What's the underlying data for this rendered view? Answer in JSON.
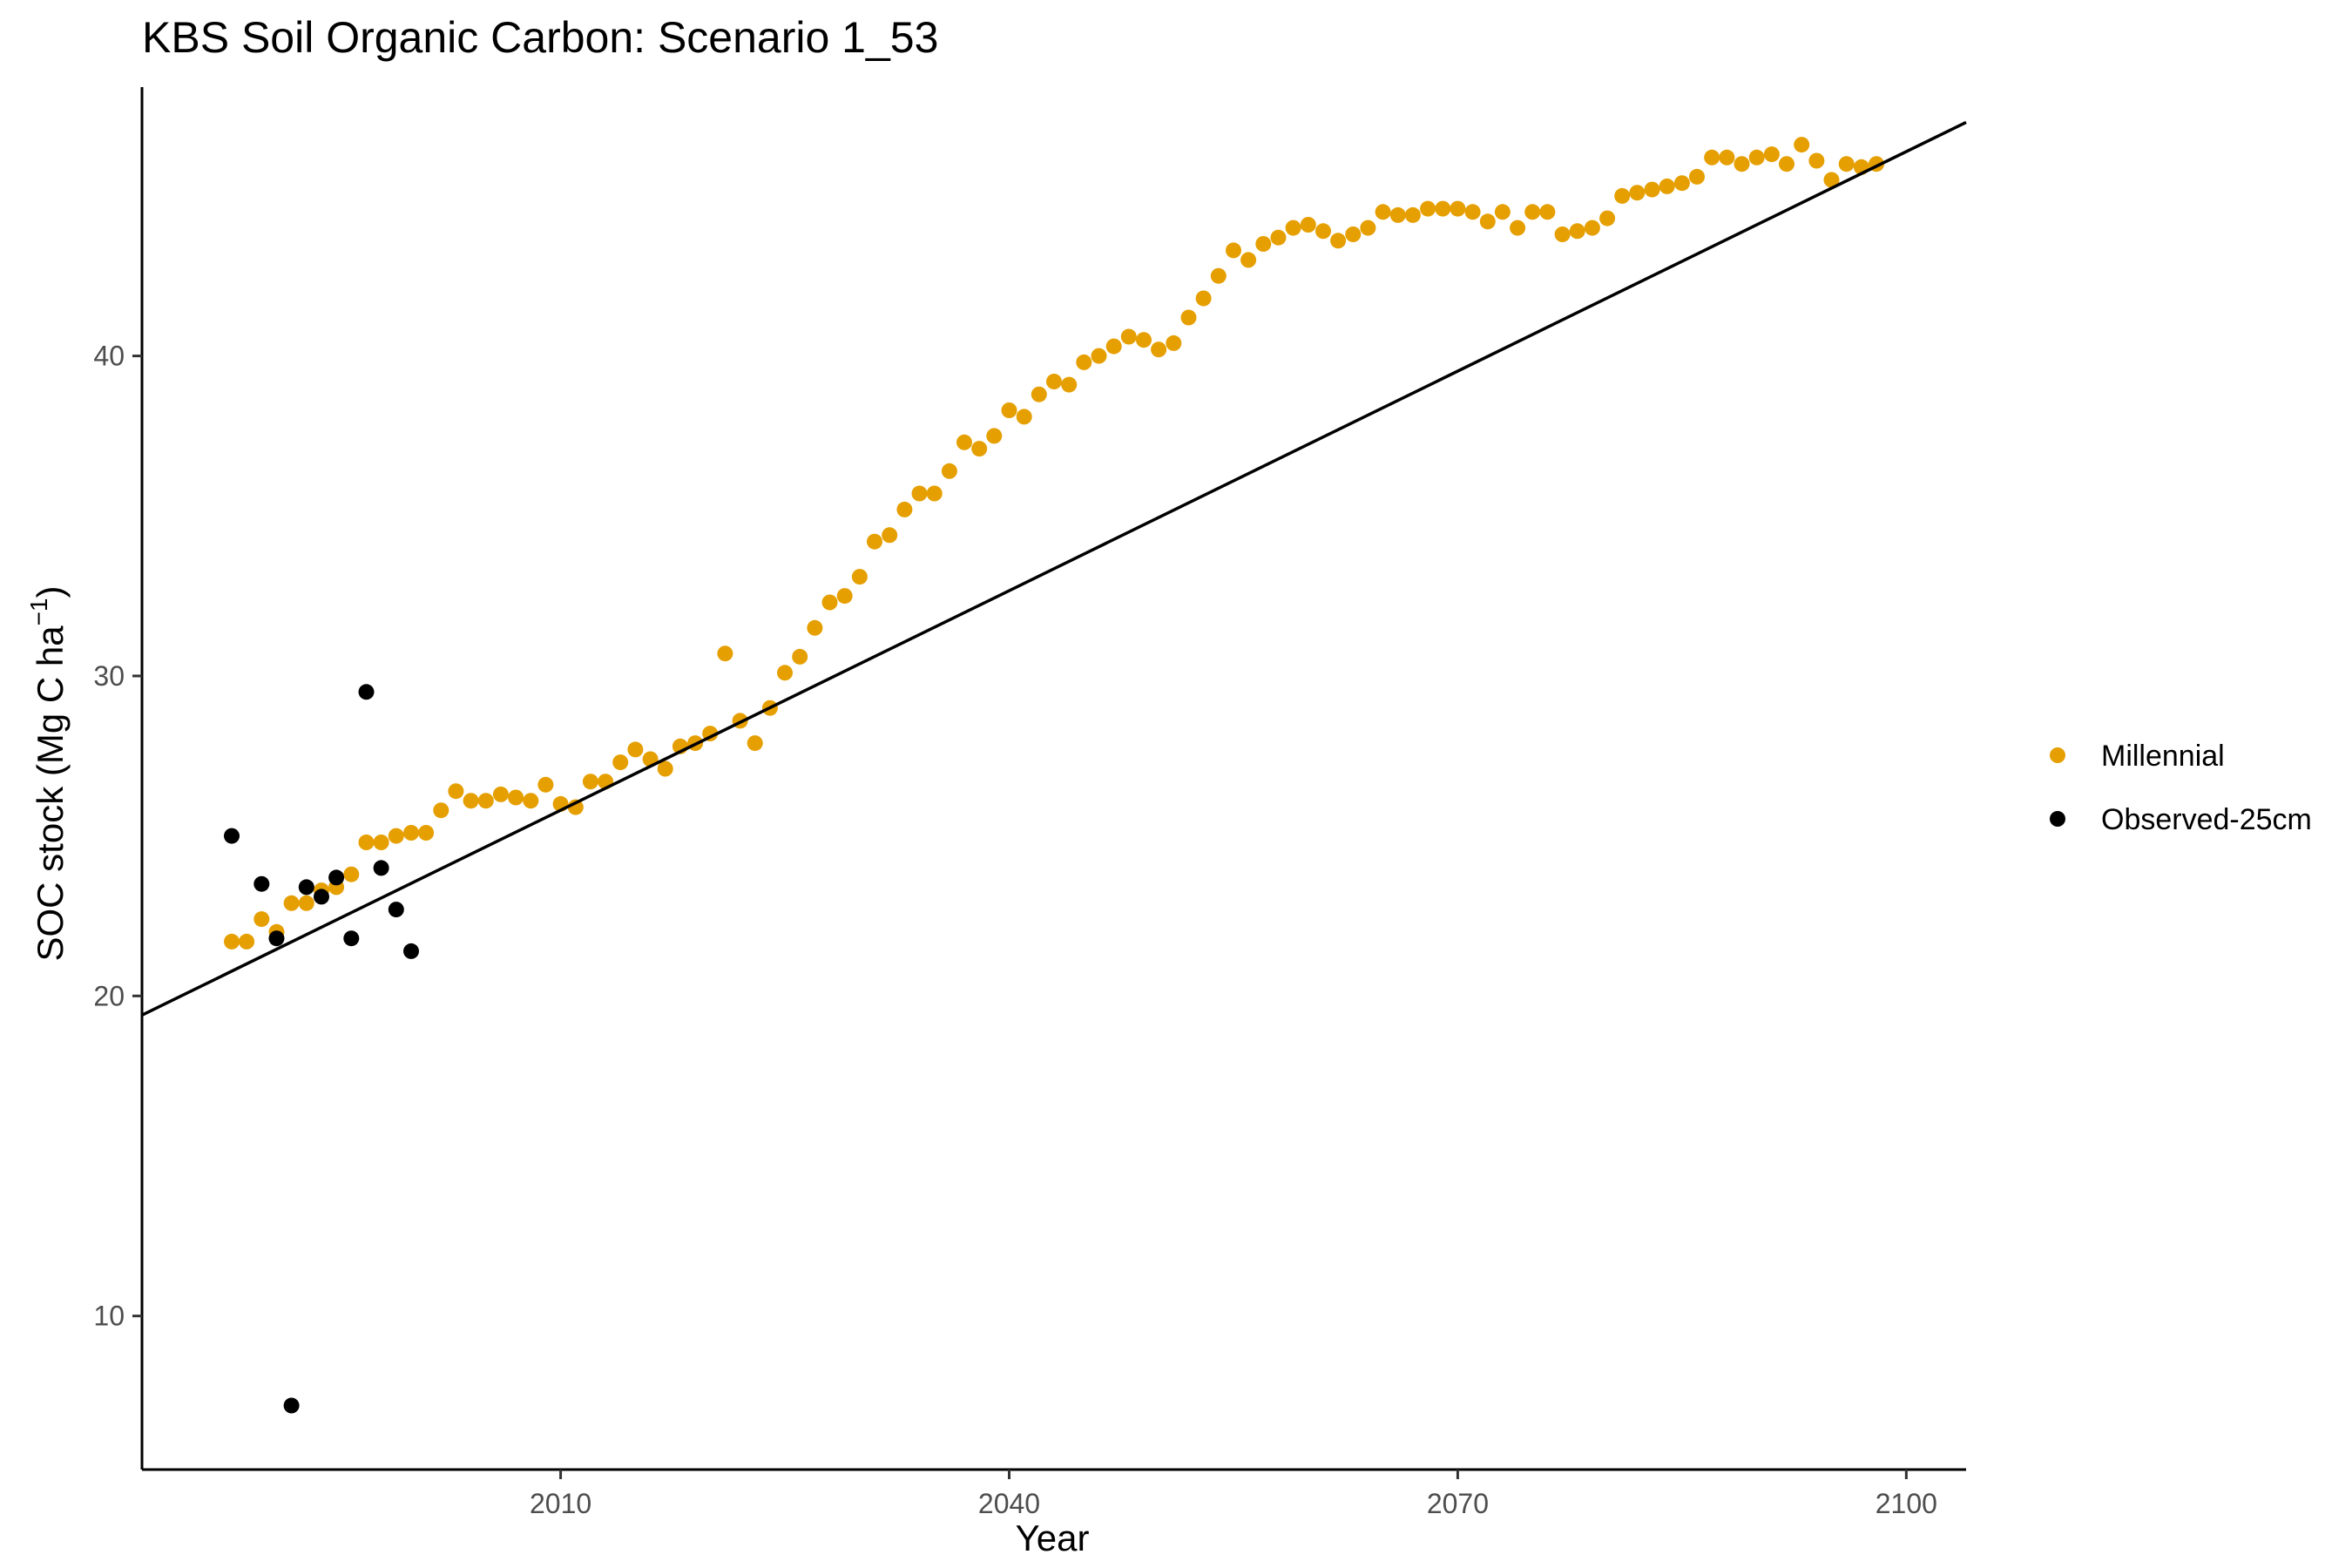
{
  "chart_data": {
    "type": "scatter",
    "title": "KBS Soil Organic Carbon: Scenario  1_53",
    "xlabel": "Year",
    "ylabel": {
      "prefix": "SOC stock (Mg C ha",
      "superscript": "−1",
      "suffix": ")"
    },
    "xlim": [
      1982,
      2104
    ],
    "ylim": [
      5.2,
      48.4
    ],
    "x_ticks": [
      2010,
      2040,
      2070,
      2100
    ],
    "y_ticks": [
      10,
      20,
      30,
      40
    ],
    "grid": false,
    "legend_position": "right",
    "series": [
      {
        "name": "Millennial",
        "color": "#E69F00",
        "points": [
          [
            1988,
            21.7
          ],
          [
            1989,
            21.7
          ],
          [
            1990,
            22.4
          ],
          [
            1991,
            22.0
          ],
          [
            1992,
            22.9
          ],
          [
            1993,
            22.9
          ],
          [
            1994,
            23.3
          ],
          [
            1995,
            23.4
          ],
          [
            1996,
            23.8
          ],
          [
            1997,
            24.8
          ],
          [
            1998,
            24.8
          ],
          [
            1999,
            25.0
          ],
          [
            2000,
            25.1
          ],
          [
            2001,
            25.1
          ],
          [
            2002,
            25.8
          ],
          [
            2003,
            26.4
          ],
          [
            2004,
            26.1
          ],
          [
            2005,
            26.1
          ],
          [
            2006,
            26.3
          ],
          [
            2007,
            26.2
          ],
          [
            2008,
            26.1
          ],
          [
            2009,
            26.6
          ],
          [
            2010,
            26.0
          ],
          [
            2011,
            25.9
          ],
          [
            2012,
            26.7
          ],
          [
            2013,
            26.7
          ],
          [
            2014,
            27.3
          ],
          [
            2015,
            27.7
          ],
          [
            2016,
            27.4
          ],
          [
            2017,
            27.1
          ],
          [
            2018,
            27.8
          ],
          [
            2019,
            27.9
          ],
          [
            2020,
            28.2
          ],
          [
            2021,
            30.7
          ],
          [
            2022,
            28.6
          ],
          [
            2023,
            27.9
          ],
          [
            2024,
            29.0
          ],
          [
            2025,
            30.1
          ],
          [
            2026,
            30.6
          ],
          [
            2027,
            31.5
          ],
          [
            2028,
            32.3
          ],
          [
            2029,
            32.5
          ],
          [
            2030,
            33.1
          ],
          [
            2031,
            34.2
          ],
          [
            2032,
            34.4
          ],
          [
            2033,
            35.2
          ],
          [
            2034,
            35.7
          ],
          [
            2035,
            35.7
          ],
          [
            2036,
            36.4
          ],
          [
            2037,
            37.3
          ],
          [
            2038,
            37.1
          ],
          [
            2039,
            37.5
          ],
          [
            2040,
            38.3
          ],
          [
            2041,
            38.1
          ],
          [
            2042,
            38.8
          ],
          [
            2043,
            39.2
          ],
          [
            2044,
            39.1
          ],
          [
            2045,
            39.8
          ],
          [
            2046,
            40.0
          ],
          [
            2047,
            40.3
          ],
          [
            2048,
            40.6
          ],
          [
            2049,
            40.5
          ],
          [
            2050,
            40.2
          ],
          [
            2051,
            40.4
          ],
          [
            2052,
            41.2
          ],
          [
            2053,
            41.8
          ],
          [
            2054,
            42.5
          ],
          [
            2055,
            43.3
          ],
          [
            2056,
            43.0
          ],
          [
            2057,
            43.5
          ],
          [
            2058,
            43.7
          ],
          [
            2059,
            44.0
          ],
          [
            2060,
            44.1
          ],
          [
            2061,
            43.9
          ],
          [
            2062,
            43.6
          ],
          [
            2063,
            43.8
          ],
          [
            2064,
            44.0
          ],
          [
            2065,
            44.5
          ],
          [
            2066,
            44.4
          ],
          [
            2067,
            44.4
          ],
          [
            2068,
            44.6
          ],
          [
            2069,
            44.6
          ],
          [
            2070,
            44.6
          ],
          [
            2071,
            44.5
          ],
          [
            2072,
            44.2
          ],
          [
            2073,
            44.5
          ],
          [
            2074,
            44.0
          ],
          [
            2075,
            44.5
          ],
          [
            2076,
            44.5
          ],
          [
            2077,
            43.8
          ],
          [
            2078,
            43.9
          ],
          [
            2079,
            44.0
          ],
          [
            2080,
            44.3
          ],
          [
            2081,
            45.0
          ],
          [
            2082,
            45.1
          ],
          [
            2083,
            45.2
          ],
          [
            2084,
            45.3
          ],
          [
            2085,
            45.4
          ],
          [
            2086,
            45.6
          ],
          [
            2087,
            46.2
          ],
          [
            2088,
            46.2
          ],
          [
            2089,
            46.0
          ],
          [
            2090,
            46.2
          ],
          [
            2091,
            46.3
          ],
          [
            2092,
            46.0
          ],
          [
            2093,
            46.6
          ],
          [
            2094,
            46.1
          ],
          [
            2095,
            45.5
          ],
          [
            2096,
            46.0
          ],
          [
            2097,
            45.9
          ],
          [
            2098,
            46.0
          ]
        ]
      },
      {
        "name": "Observed-25cm",
        "color": "#000000",
        "points": [
          [
            1988,
            25.0
          ],
          [
            1990,
            23.5
          ],
          [
            1991,
            21.8
          ],
          [
            1992,
            7.2
          ],
          [
            1993,
            23.4
          ],
          [
            1994,
            23.1
          ],
          [
            1995,
            23.7
          ],
          [
            1996,
            21.8
          ],
          [
            1997,
            29.5
          ],
          [
            1998,
            24.0
          ],
          [
            1999,
            22.7
          ],
          [
            2000,
            21.4
          ]
        ]
      }
    ],
    "trend_line": {
      "color": "#000000",
      "points": [
        [
          1982,
          19.4
        ],
        [
          2104,
          47.3
        ]
      ]
    }
  }
}
